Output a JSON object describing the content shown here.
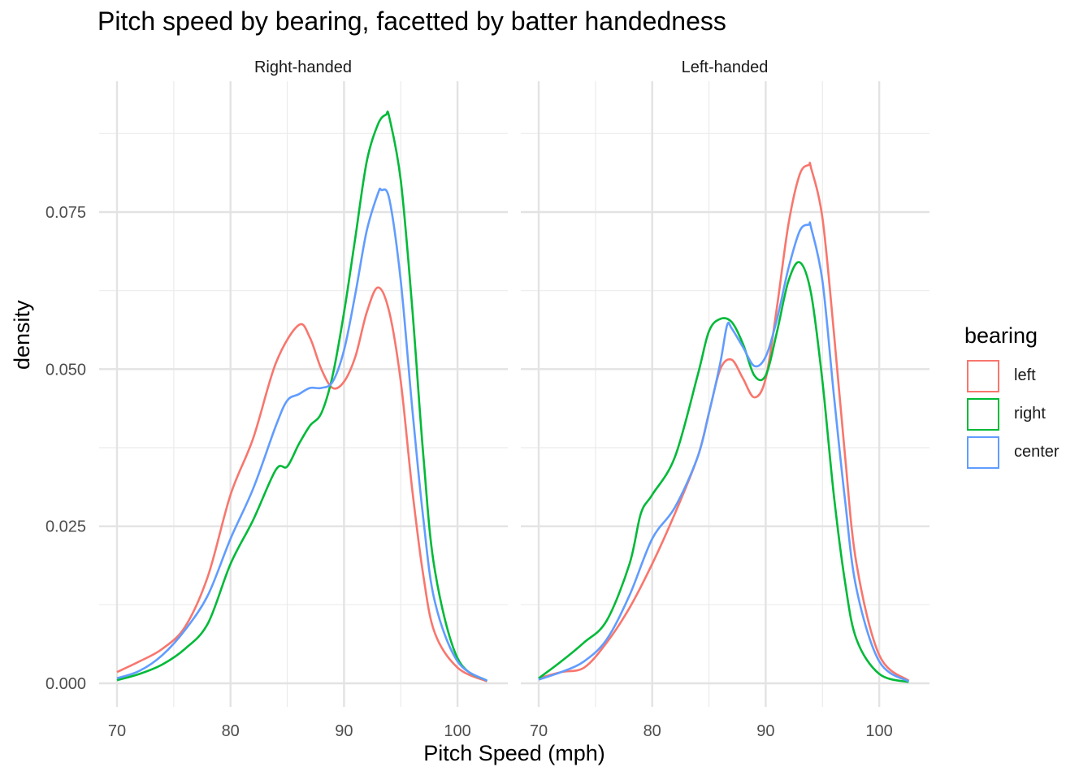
{
  "chart_data": {
    "type": "area",
    "title": "Pitch speed by bearing, facetted by batter handedness",
    "xlabel": "Pitch Speed (mph)",
    "ylabel": "density",
    "xlim": [
      70,
      103
    ],
    "ylim": [
      0,
      0.092
    ],
    "x_ticks": [
      70,
      80,
      90,
      100
    ],
    "y_ticks": [
      0.0,
      0.025,
      0.05,
      0.075
    ],
    "y_tick_labels": [
      "0.000",
      "0.025",
      "0.050",
      "0.075"
    ],
    "grid": true,
    "legend": {
      "title": "bearing",
      "position": "right",
      "entries": [
        {
          "name": "left",
          "color": "#F8766D"
        },
        {
          "name": "right",
          "color": "#00BA38"
        },
        {
          "name": "center",
          "color": "#619CFF"
        }
      ]
    },
    "facets": [
      {
        "label": "Right-handed",
        "series": [
          {
            "name": "left",
            "color": "#F8766D",
            "x": [
              70,
              72,
              74,
              76,
              78,
              80,
              82,
              84,
              86,
              87,
              88,
              89,
              90,
              91,
              92,
              93,
              94,
              95,
              96,
              97,
              98,
              100,
              102.6
            ],
            "y": [
              0.0018,
              0.0035,
              0.0055,
              0.009,
              0.017,
              0.03,
              0.039,
              0.051,
              0.057,
              0.055,
              0.05,
              0.047,
              0.048,
              0.052,
              0.059,
              0.063,
              0.059,
              0.048,
              0.031,
              0.017,
              0.008,
              0.0025,
              0.0003
            ]
          },
          {
            "name": "right",
            "color": "#00BA38",
            "x": [
              70,
              72,
              74,
              76,
              78,
              80,
              82,
              84,
              85,
              86,
              87,
              88,
              89,
              90,
              91,
              92,
              93,
              93.7,
              94,
              95,
              96,
              97,
              98,
              100,
              102.6
            ],
            "y": [
              0.0005,
              0.0015,
              0.003,
              0.0055,
              0.0095,
              0.019,
              0.026,
              0.034,
              0.0345,
              0.038,
              0.041,
              0.043,
              0.049,
              0.059,
              0.071,
              0.083,
              0.089,
              0.0905,
              0.09,
              0.08,
              0.06,
              0.036,
              0.018,
              0.004,
              0.0004
            ]
          },
          {
            "name": "center",
            "color": "#619CFF",
            "x": [
              70,
              72,
              74,
              76,
              78,
              80,
              82,
              84,
              85,
              86,
              87,
              88,
              89,
              90,
              91,
              92,
              93,
              93.3,
              94,
              95,
              96,
              97,
              98,
              100,
              102.6
            ],
            "y": [
              0.0008,
              0.002,
              0.0045,
              0.0085,
              0.014,
              0.023,
              0.031,
              0.041,
              0.045,
              0.046,
              0.047,
              0.047,
              0.048,
              0.053,
              0.062,
              0.072,
              0.078,
              0.0785,
              0.077,
              0.064,
              0.044,
              0.026,
              0.013,
              0.0035,
              0.0004
            ]
          }
        ]
      },
      {
        "label": "Left-handed",
        "series": [
          {
            "name": "left",
            "color": "#F8766D",
            "x": [
              70,
              72,
              74,
              76,
              78,
              80,
              82,
              84,
              85,
              86,
              87,
              88,
              89,
              90,
              91,
              92,
              93,
              93.8,
              94,
              95,
              96,
              97,
              98,
              100,
              102.6
            ],
            "y": [
              0.0008,
              0.0018,
              0.0025,
              0.0065,
              0.012,
              0.019,
              0.027,
              0.036,
              0.043,
              0.05,
              0.0515,
              0.0485,
              0.0455,
              0.0485,
              0.06,
              0.073,
              0.081,
              0.0825,
              0.082,
              0.074,
              0.056,
              0.036,
              0.019,
              0.0045,
              0.0004
            ]
          },
          {
            "name": "right",
            "color": "#00BA38",
            "x": [
              70,
              72,
              74,
              76,
              78,
              79,
              80,
              82,
              84,
              85,
              86,
              87,
              88,
              89,
              90,
              91,
              92,
              93,
              94,
              95,
              96,
              97,
              98,
              100,
              102.6
            ],
            "y": [
              0.0008,
              0.0035,
              0.0065,
              0.01,
              0.019,
              0.027,
              0.03,
              0.036,
              0.049,
              0.056,
              0.058,
              0.0575,
              0.054,
              0.049,
              0.049,
              0.056,
              0.064,
              0.067,
              0.062,
              0.048,
              0.03,
              0.016,
              0.007,
              0.0015,
              0.0002
            ]
          },
          {
            "name": "center",
            "color": "#619CFF",
            "x": [
              70,
              72,
              74,
              76,
              78,
              80,
              82,
              84,
              85,
              86,
              86.6,
              87,
              88,
              89,
              90,
              91,
              92,
              93,
              93.8,
              94,
              95,
              96,
              97,
              98,
              100,
              102.6
            ],
            "y": [
              0.0006,
              0.0018,
              0.0035,
              0.007,
              0.014,
              0.023,
              0.028,
              0.036,
              0.043,
              0.051,
              0.057,
              0.0565,
              0.0535,
              0.0505,
              0.052,
              0.058,
              0.066,
              0.072,
              0.073,
              0.0725,
              0.064,
              0.046,
              0.029,
              0.015,
              0.0035,
              0.0003
            ]
          }
        ]
      }
    ]
  }
}
